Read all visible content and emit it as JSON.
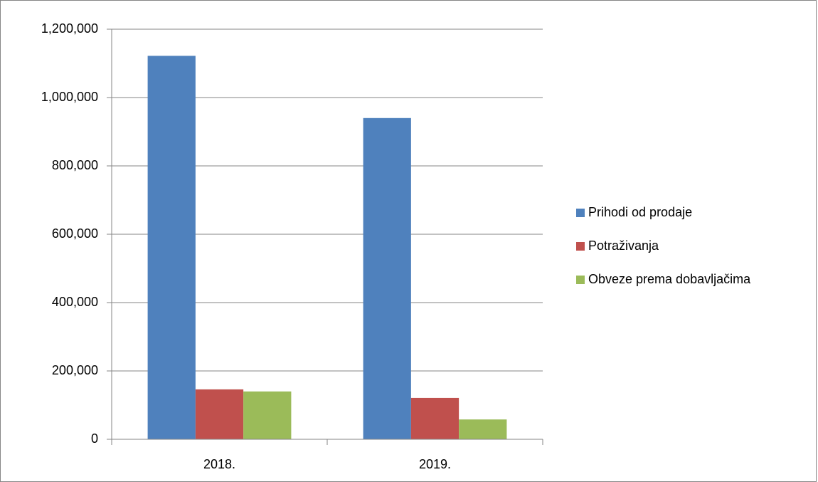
{
  "chart_data": {
    "type": "bar",
    "categories": [
      "2018.",
      "2019."
    ],
    "series": [
      {
        "name": "Prihodi od prodaje",
        "color": "#4f81bd",
        "values": [
          1122000,
          940000
        ]
      },
      {
        "name": "Potraživanja",
        "color": "#c0504d",
        "values": [
          146000,
          121000
        ]
      },
      {
        "name": "Obveze prema dobavljačima",
        "color": "#9bbb59",
        "values": [
          140000,
          58000
        ]
      }
    ],
    "ylim": [
      0,
      1200000
    ],
    "yticks": [
      0,
      {
        "value": 200000,
        "label": "200,000"
      },
      {
        "value": 400000,
        "label": "400,000"
      },
      {
        "value": 600000,
        "label": "600,000"
      },
      {
        "value": 800000,
        "label": "800,000"
      },
      {
        "value": 1000000,
        "label": "1,000,000"
      },
      {
        "value": 1200000,
        "label": "1,200,000"
      }
    ],
    "grid": true,
    "legend": "right"
  }
}
